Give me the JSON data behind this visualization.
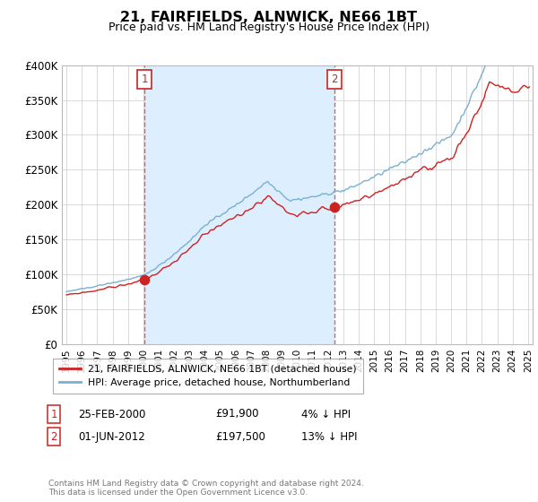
{
  "title": "21, FAIRFIELDS, ALNWICK, NE66 1BT",
  "subtitle": "Price paid vs. HM Land Registry's House Price Index (HPI)",
  "ylim": [
    0,
    400000
  ],
  "yticks": [
    0,
    50000,
    100000,
    150000,
    200000,
    250000,
    300000,
    350000,
    400000
  ],
  "ytick_labels": [
    "£0",
    "£50K",
    "£100K",
    "£150K",
    "£200K",
    "£250K",
    "£300K",
    "£350K",
    "£400K"
  ],
  "hpi_color": "#7ab0d4",
  "price_color": "#cc2222",
  "vline_color": "#e06060",
  "shade_color": "#ddeeff",
  "background_color": "#ffffff",
  "grid_color": "#cccccc",
  "sale1_t": 2000.08,
  "sale1_price": 91900,
  "sale2_t": 2012.42,
  "sale2_price": 197500,
  "legend_label_price": "21, FAIRFIELDS, ALNWICK, NE66 1BT (detached house)",
  "legend_label_hpi": "HPI: Average price, detached house, Northumberland",
  "note1_date": "25-FEB-2000",
  "note1_price": "£91,900",
  "note1_hpi": "4% ↓ HPI",
  "note2_date": "01-JUN-2012",
  "note2_price": "£197,500",
  "note2_hpi": "13% ↓ HPI",
  "footer": "Contains HM Land Registry data © Crown copyright and database right 2024.\nThis data is licensed under the Open Government Licence v3.0.",
  "xstart": 1994.7,
  "xend": 2025.3
}
